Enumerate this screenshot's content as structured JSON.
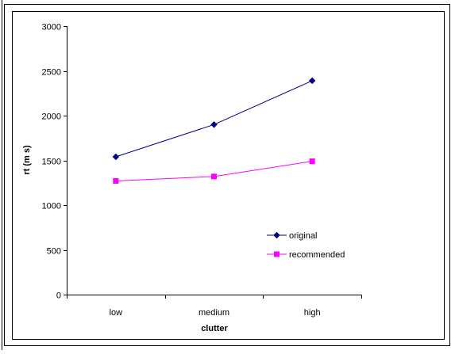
{
  "chart_data": {
    "type": "line",
    "categories": [
      "low",
      "medium",
      "high"
    ],
    "series": [
      {
        "name": "original",
        "values": [
          1540,
          1900,
          2390
        ],
        "color": "#000080",
        "marker": "diamond"
      },
      {
        "name": "recommended",
        "values": [
          1270,
          1320,
          1490
        ],
        "color": "#ff00ff",
        "marker": "square"
      }
    ],
    "title": "",
    "xlabel": "clutter",
    "ylabel": "rt (m s)",
    "ylim": [
      0,
      3000
    ],
    "yticks": [
      0,
      500,
      1000,
      1500,
      2000,
      2500,
      3000
    ],
    "grid": false,
    "legend": "right"
  }
}
